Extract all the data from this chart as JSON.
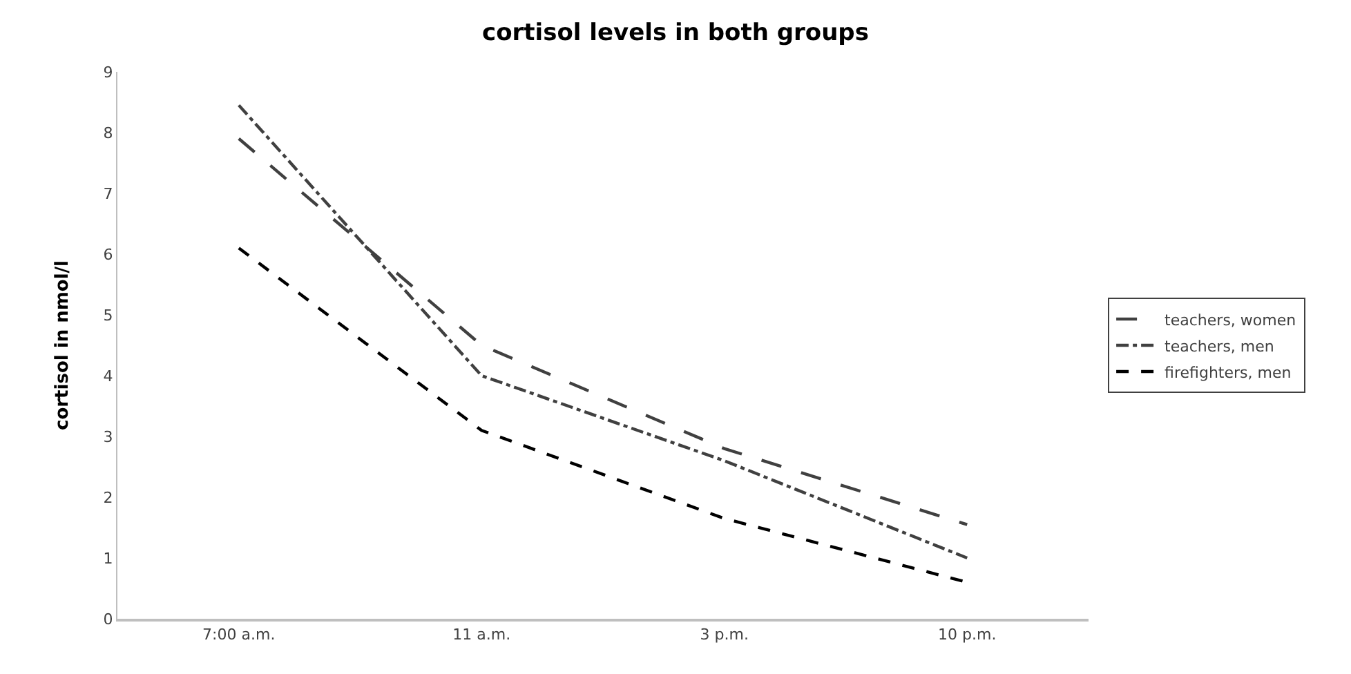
{
  "chart_data": {
    "type": "line",
    "title": "cortisol levels in both groups",
    "ylabel": "cortisol in nmol/l",
    "categories": [
      "7:00 a.m.",
      "11 a.m.",
      "3 p.m.",
      "10 p.m."
    ],
    "series": [
      {
        "name": "teachers, women",
        "color": "#404040",
        "line_style": "longdash",
        "values": [
          7.9,
          4.5,
          2.8,
          1.55
        ]
      },
      {
        "name": "teachers, men",
        "color": "#404040",
        "line_style": "dashdot",
        "values": [
          8.45,
          4.0,
          2.6,
          1.0
        ]
      },
      {
        "name": "firefighters, men",
        "color": "#000000",
        "line_style": "dashed",
        "values": [
          6.1,
          3.1,
          1.65,
          0.6
        ]
      }
    ],
    "ylim": [
      0,
      9
    ],
    "yticks": [
      0,
      1,
      2,
      3,
      4,
      5,
      6,
      7,
      8,
      9
    ],
    "grid": false,
    "legend": "right",
    "marker": "none"
  }
}
